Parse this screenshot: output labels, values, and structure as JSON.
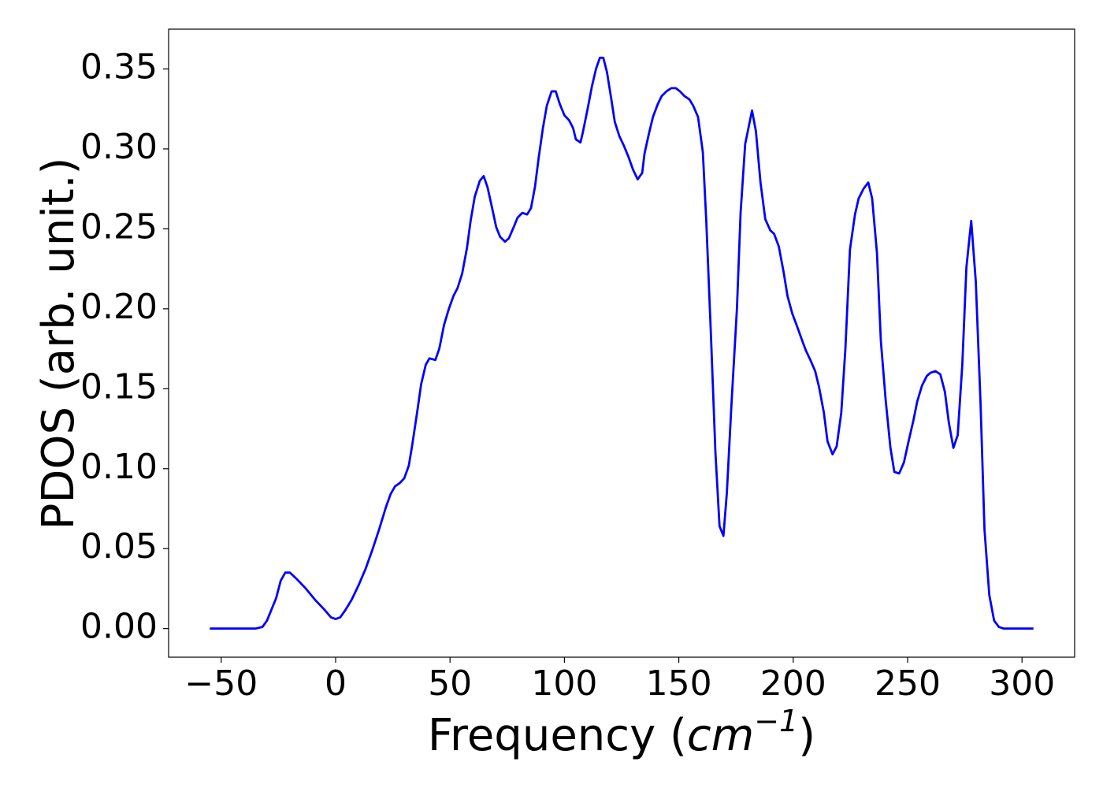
{
  "chart_data": {
    "type": "line",
    "y_label": "PDOS (arb. unit.)",
    "x_label": [
      "Frequency (",
      "cm",
      "−1",
      ")"
    ],
    "x": [
      -55,
      -35,
      -32,
      -30,
      -28,
      -26,
      -24,
      -22,
      -20,
      -17,
      -13,
      -9,
      -5,
      -2,
      0,
      2,
      4,
      7,
      10,
      13,
      16,
      19,
      22,
      24,
      26,
      28,
      30,
      32,
      33.5,
      35.6,
      37.4,
      39.4,
      41,
      43.6,
      45.3,
      47.4,
      49.5,
      51.5,
      53.3,
      55.3,
      57.4,
      59,
      60.8,
      63,
      64.7,
      66.4,
      68.4,
      70.2,
      71.9,
      74,
      75.7,
      77.8,
      79.5,
      81.6,
      83.7,
      85.4,
      87.1,
      88.8,
      90.6,
      92.3,
      94.4,
      96.2,
      98,
      100,
      102,
      103.8,
      105,
      107,
      108,
      110,
      112,
      113.8,
      115.5,
      117,
      118.6,
      120.4,
      122,
      124,
      126,
      128,
      130,
      132,
      134,
      135,
      137,
      138.7,
      140.8,
      142.5,
      144.6,
      146.7,
      148.7,
      150.5,
      152.5,
      154.6,
      156.3,
      158.4,
      160.5,
      162,
      164,
      166,
      167.8,
      169.5,
      171,
      173,
      175.4,
      177,
      179,
      182,
      183.7,
      185.7,
      187.8,
      190,
      191.6,
      193.7,
      195.8,
      197.5,
      199.6,
      201.7,
      203.7,
      205.5,
      207.5,
      209.6,
      211.3,
      213.4,
      215,
      217.2,
      219,
      221,
      222.8,
      224.8,
      227,
      228.6,
      230.7,
      232.8,
      234.5,
      236.6,
      238.3,
      240.4,
      242.5,
      244.2,
      246.3,
      248.4,
      250.4,
      252.5,
      254.2,
      256.3,
      258.4,
      260,
      262.2,
      264.3,
      266.3,
      268,
      270,
      271.9,
      273.9,
      275.7,
      277.8,
      279.8,
      281.9,
      283.6,
      285.7,
      287.8,
      289.9,
      292,
      305
    ],
    "values": [
      0,
      0,
      0.001,
      0.005,
      0.012,
      0.019,
      0.03,
      0.035,
      0.035,
      0.031,
      0.025,
      0.018,
      0.012,
      0.007,
      0.006,
      0.007,
      0.011,
      0.018,
      0.027,
      0.037,
      0.049,
      0.062,
      0.076,
      0.084,
      0.089,
      0.091,
      0.094,
      0.102,
      0.115,
      0.135,
      0.153,
      0.165,
      0.169,
      0.168,
      0.175,
      0.19,
      0.2,
      0.208,
      0.213,
      0.222,
      0.238,
      0.255,
      0.27,
      0.28,
      0.283,
      0.276,
      0.263,
      0.251,
      0.245,
      0.242,
      0.244,
      0.251,
      0.257,
      0.26,
      0.259,
      0.263,
      0.276,
      0.295,
      0.313,
      0.327,
      0.336,
      0.336,
      0.328,
      0.321,
      0.318,
      0.313,
      0.306,
      0.304,
      0.31,
      0.324,
      0.339,
      0.35,
      0.357,
      0.357,
      0.348,
      0.332,
      0.317,
      0.308,
      0.302,
      0.295,
      0.287,
      0.281,
      0.285,
      0.297,
      0.31,
      0.32,
      0.328,
      0.333,
      0.336,
      0.338,
      0.338,
      0.336,
      0.333,
      0.331,
      0.327,
      0.32,
      0.298,
      0.255,
      0.185,
      0.11,
      0.064,
      0.058,
      0.085,
      0.14,
      0.2,
      0.26,
      0.303,
      0.324,
      0.311,
      0.279,
      0.256,
      0.249,
      0.247,
      0.239,
      0.223,
      0.208,
      0.197,
      0.189,
      0.181,
      0.174,
      0.168,
      0.161,
      0.151,
      0.135,
      0.117,
      0.109,
      0.114,
      0.135,
      0.175,
      0.237,
      0.259,
      0.269,
      0.275,
      0.279,
      0.269,
      0.235,
      0.18,
      0.143,
      0.113,
      0.098,
      0.097,
      0.104,
      0.117,
      0.13,
      0.142,
      0.152,
      0.158,
      0.16,
      0.161,
      0.159,
      0.148,
      0.129,
      0.113,
      0.121,
      0.165,
      0.226,
      0.255,
      0.217,
      0.14,
      0.062,
      0.021,
      0.005,
      0.001,
      0,
      0
    ],
    "color": "#0000ff",
    "xlim": [
      -73,
      323
    ],
    "ylim": [
      -0.0179,
      0.3749
    ],
    "xticks": [
      {
        "value": -50,
        "label": "−50"
      },
      0,
      50,
      100,
      150,
      200,
      250,
      300
    ],
    "yticks": [
      {
        "value": 0,
        "label": "0.00"
      },
      0.05,
      {
        "value": 0.1,
        "label": "0.10"
      },
      0.15,
      {
        "value": 0.2,
        "label": "0.20"
      },
      0.25,
      {
        "value": 0.3,
        "label": "0.30"
      },
      0.35
    ],
    "grid": false
  }
}
